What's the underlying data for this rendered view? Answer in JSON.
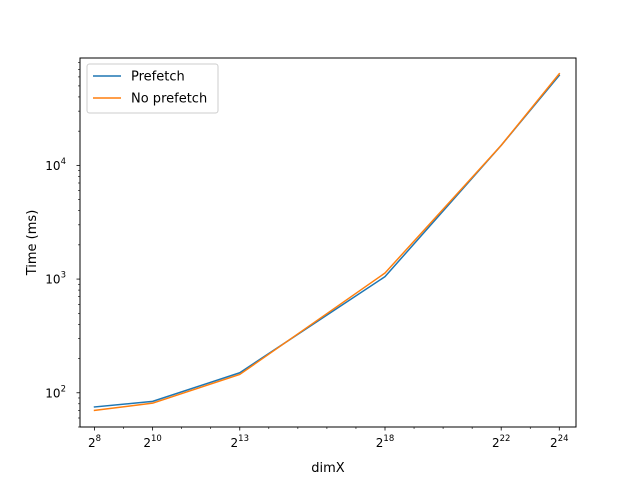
{
  "chart_data": {
    "type": "line",
    "title": "",
    "xlabel": "dimX",
    "ylabel": "Time (ms)",
    "x_scale": "log2",
    "y_scale": "log10",
    "x": [
      256,
      1024,
      8192,
      262144,
      4194304,
      16777216
    ],
    "x_tick_values": [
      256,
      1024,
      8192,
      262144,
      4194304,
      16777216
    ],
    "x_tick_bases": [
      "2",
      "2",
      "2",
      "2",
      "2",
      "2"
    ],
    "x_tick_exponents": [
      "8",
      "10",
      "13",
      "18",
      "22",
      "24"
    ],
    "y_tick_values": [
      100,
      1000,
      10000
    ],
    "y_tick_bases": [
      "10",
      "10",
      "10"
    ],
    "y_tick_exponents": [
      "2",
      "3",
      "4"
    ],
    "xlim": [
      181,
      25000000
    ],
    "ylim": [
      50,
      88000
    ],
    "grid": false,
    "legend_position": "upper-left",
    "series": [
      {
        "name": "Prefetch",
        "color": "#1f77b4",
        "values": [
          75,
          84,
          150,
          1050,
          15000,
          62000
        ]
      },
      {
        "name": "No prefetch",
        "color": "#ff7f0e",
        "values": [
          70,
          81,
          145,
          1130,
          15000,
          64000
        ]
      }
    ]
  }
}
